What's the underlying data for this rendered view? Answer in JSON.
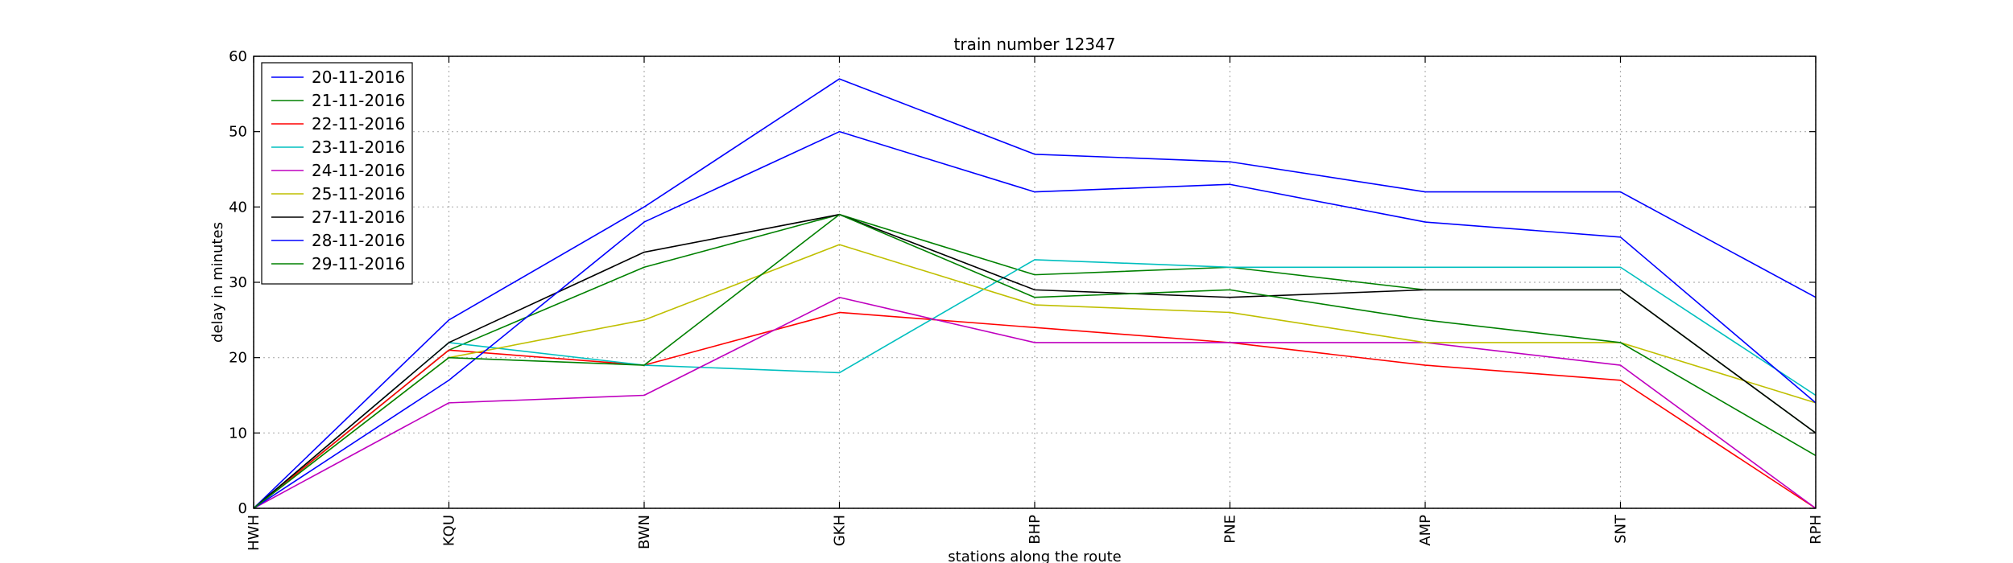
{
  "chart_data": {
    "type": "line",
    "title": "train number 12347",
    "xlabel": "stations along the route",
    "ylabel": "delay in minutes",
    "categories": [
      "HWH",
      "KQU",
      "BWN",
      "GKH",
      "BHP",
      "PNE",
      "AMP",
      "SNT",
      "RPH"
    ],
    "ylim": [
      0,
      60
    ],
    "yticks": [
      0,
      10,
      20,
      30,
      40,
      50,
      60
    ],
    "grid": true,
    "legend_position": "upper-left",
    "series": [
      {
        "name": "20-11-2016",
        "color": "#0000ff",
        "values": [
          0,
          25,
          40,
          57,
          47,
          46,
          42,
          42,
          28
        ]
      },
      {
        "name": "21-11-2016",
        "color": "#008000",
        "values": [
          0,
          21,
          32,
          39,
          31,
          32,
          29,
          29,
          10
        ]
      },
      {
        "name": "22-11-2016",
        "color": "#ff0000",
        "values": [
          0,
          21,
          19,
          26,
          24,
          22,
          19,
          17,
          0
        ]
      },
      {
        "name": "23-11-2016",
        "color": "#00bfbf",
        "values": [
          0,
          22,
          19,
          18,
          33,
          32,
          32,
          32,
          15
        ]
      },
      {
        "name": "24-11-2016",
        "color": "#bf00bf",
        "values": [
          0,
          14,
          15,
          28,
          22,
          22,
          22,
          19,
          0
        ]
      },
      {
        "name": "25-11-2016",
        "color": "#bfbf00",
        "values": [
          0,
          20,
          25,
          35,
          27,
          26,
          22,
          22,
          14
        ]
      },
      {
        "name": "27-11-2016",
        "color": "#000000",
        "values": [
          0,
          22,
          34,
          39,
          29,
          28,
          29,
          29,
          10
        ]
      },
      {
        "name": "28-11-2016",
        "color": "#0000ff",
        "values": [
          0,
          17,
          38,
          50,
          42,
          43,
          38,
          36,
          14
        ]
      },
      {
        "name": "29-11-2016",
        "color": "#008000",
        "values": [
          0,
          20,
          19,
          39,
          28,
          29,
          25,
          22,
          7
        ]
      }
    ]
  }
}
